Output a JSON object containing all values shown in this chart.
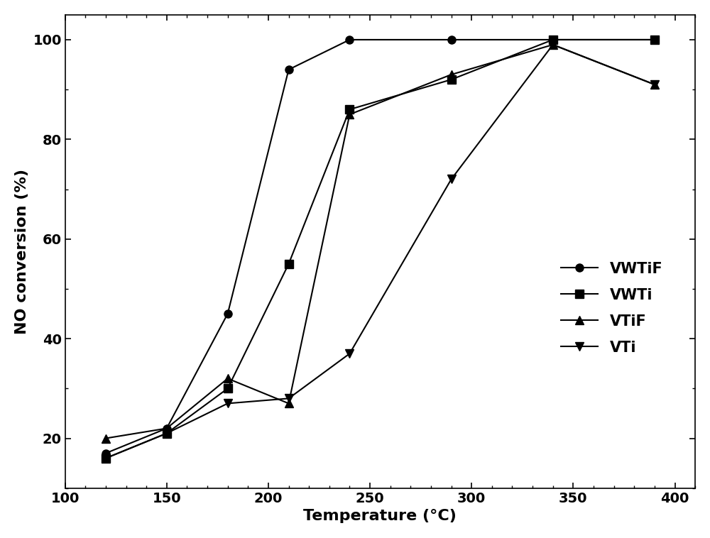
{
  "series": [
    {
      "label": "VWTiF",
      "marker": "o",
      "x": [
        120,
        150,
        180,
        210,
        240,
        290,
        340,
        390
      ],
      "y": [
        17,
        22,
        45,
        94,
        100,
        100,
        100,
        100
      ]
    },
    {
      "label": "VWTi",
      "marker": "s",
      "x": [
        120,
        150,
        180,
        210,
        240,
        290,
        340,
        390
      ],
      "y": [
        16,
        21,
        30,
        55,
        86,
        92,
        100,
        100
      ]
    },
    {
      "label": "VTiF",
      "marker": "^",
      "x": [
        120,
        150,
        180,
        210,
        240,
        290,
        340,
        390
      ],
      "y": [
        20,
        22,
        32,
        27,
        85,
        93,
        99,
        91
      ]
    },
    {
      "label": "VTi",
      "marker": "v",
      "x": [
        120,
        150,
        180,
        210,
        240,
        290,
        340,
        390
      ],
      "y": [
        16,
        21,
        27,
        28,
        37,
        72,
        99,
        91
      ]
    }
  ],
  "xlabel": "Temperature (°C)",
  "ylabel": "NO conversion (%)",
  "xlim": [
    100,
    410
  ],
  "ylim": [
    10,
    105
  ],
  "xticks": [
    100,
    150,
    200,
    250,
    300,
    350,
    400
  ],
  "yticks": [
    20,
    40,
    60,
    80,
    100
  ],
  "color": "#000000",
  "linewidth": 1.5,
  "markersize": 8,
  "figsize": [
    10.0,
    7.58
  ],
  "dpi": 100
}
